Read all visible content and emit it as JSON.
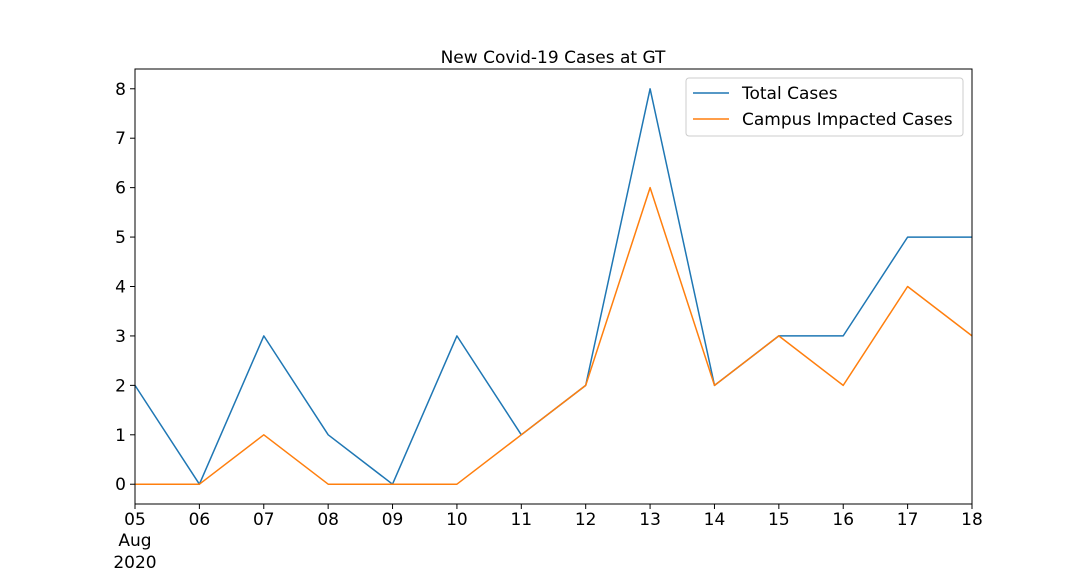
{
  "chart_data": {
    "type": "line",
    "title": "New Covid-19 Cases at GT",
    "xlabel": "",
    "ylabel": "",
    "x": [
      "05",
      "06",
      "07",
      "08",
      "09",
      "10",
      "11",
      "12",
      "13",
      "14",
      "15",
      "16",
      "17",
      "18"
    ],
    "x_sublabels": {
      "0": [
        "Aug",
        "2020"
      ]
    },
    "dates": [
      "2020-08-05",
      "2020-08-06",
      "2020-08-07",
      "2020-08-08",
      "2020-08-09",
      "2020-08-10",
      "2020-08-11",
      "2020-08-12",
      "2020-08-13",
      "2020-08-14",
      "2020-08-15",
      "2020-08-16",
      "2020-08-17",
      "2020-08-18"
    ],
    "yticks": [
      0,
      1,
      2,
      3,
      4,
      5,
      6,
      7,
      8
    ],
    "ylim": [
      -0.4,
      8.4
    ],
    "grid": false,
    "legend_position": "top-right",
    "series": [
      {
        "name": "Total Cases",
        "color": "#1f77b4",
        "values": [
          2,
          0,
          3,
          1,
          0,
          3,
          1,
          2,
          8,
          2,
          3,
          3,
          5,
          5
        ]
      },
      {
        "name": "Campus Impacted Cases",
        "color": "#ff7f0e",
        "values": [
          0,
          0,
          1,
          0,
          0,
          0,
          1,
          2,
          6,
          2,
          3,
          2,
          4,
          3
        ]
      }
    ]
  }
}
